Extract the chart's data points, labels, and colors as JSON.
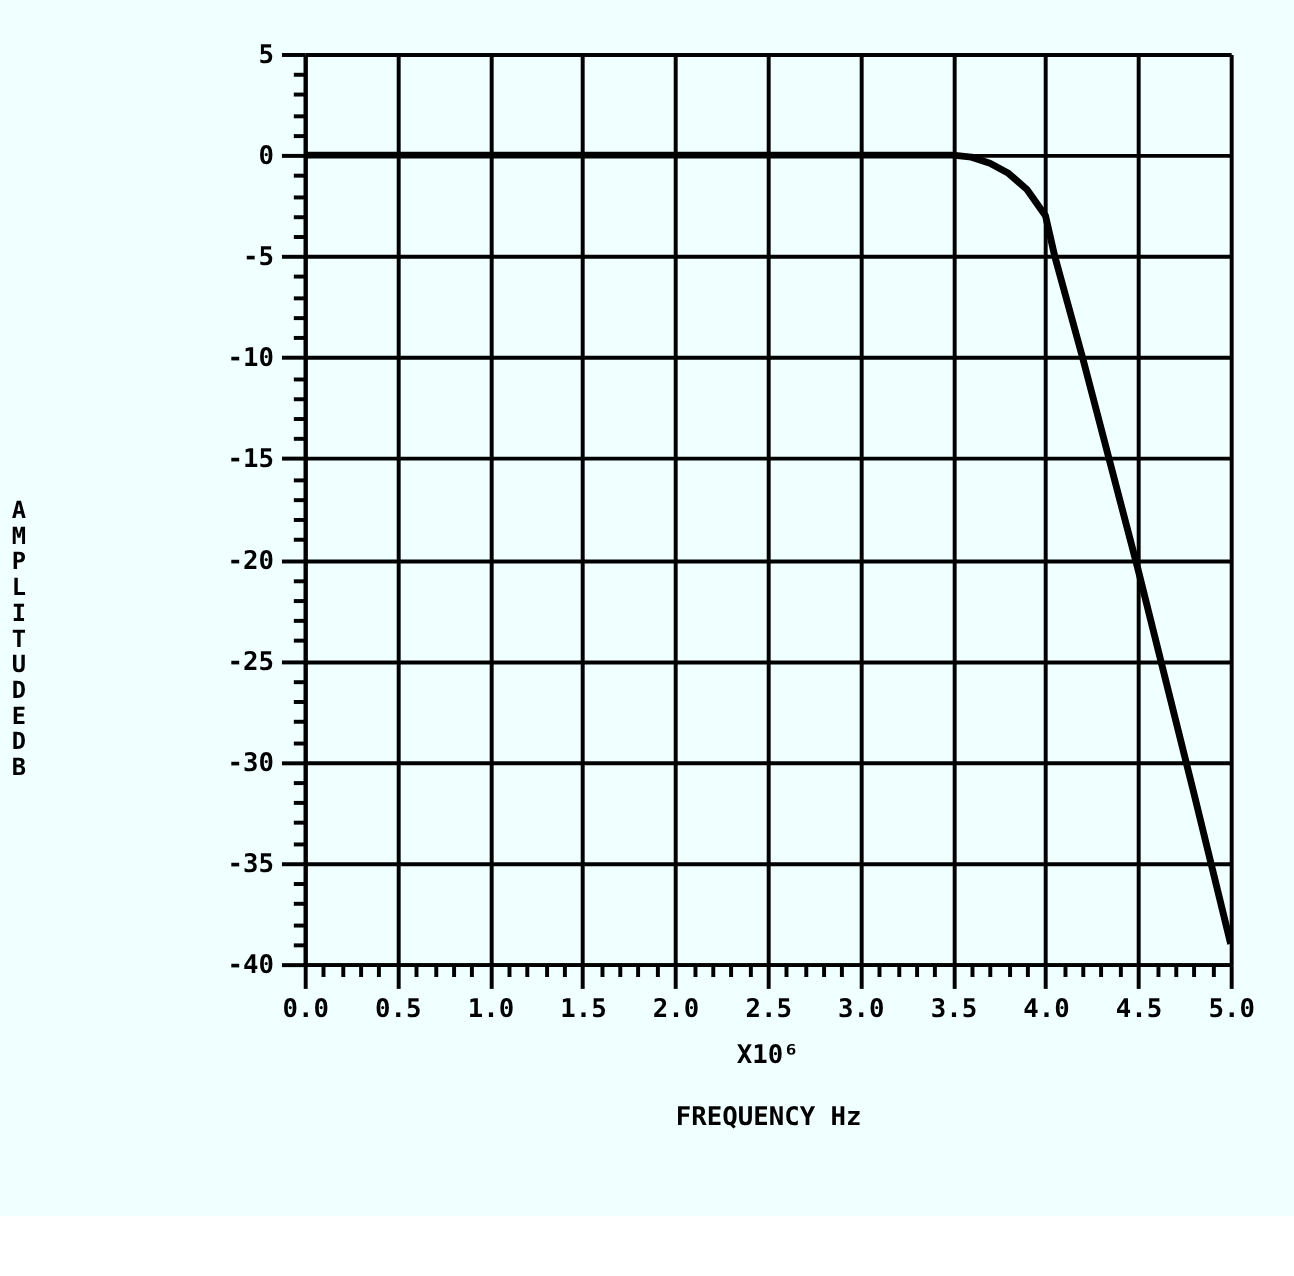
{
  "chart_data": {
    "type": "line",
    "xlabel": "FREQUENCY Hz",
    "ylabel": "AMPLITUDE DB",
    "annotations": [
      "X10⁶"
    ],
    "x": [
      0.0,
      0.5,
      1.0,
      1.5,
      2.0,
      2.5,
      3.0,
      3.5,
      3.6,
      3.7,
      3.8,
      3.9,
      4.0,
      4.05,
      4.2,
      4.5,
      4.8,
      5.0
    ],
    "series": [
      {
        "color": "#000000",
        "values": [
          0,
          0,
          0,
          0,
          0,
          0,
          0,
          0,
          -0.1,
          -0.4,
          -0.9,
          -1.7,
          -3,
          -5,
          -10,
          -20.5,
          -31.5,
          -39
        ]
      }
    ],
    "xlim": [
      0.0,
      5.0
    ],
    "xticks": [
      {
        "value": 0,
        "label": "0.0"
      },
      0.5,
      {
        "value": 1,
        "label": "1.0"
      },
      1.5,
      {
        "value": 2,
        "label": "2.0"
      },
      2.5,
      {
        "value": 3,
        "label": "3.0"
      },
      3.5,
      {
        "value": 4,
        "label": "4.0"
      },
      4.5,
      {
        "value": 5,
        "label": "5.0"
      },
      {
        "value": 0.1,
        "label": null
      },
      {
        "value": 0.2,
        "label": null
      },
      {
        "value": 0.3,
        "label": null
      },
      {
        "value": 0.4,
        "label": null
      },
      {
        "value": 0.6,
        "label": null
      },
      {
        "value": 0.7,
        "label": null
      },
      {
        "value": 0.8,
        "label": null
      },
      {
        "value": 0.9,
        "label": null
      },
      {
        "value": 1.1,
        "label": null
      },
      {
        "value": 1.2,
        "label": null
      },
      {
        "value": 1.3,
        "label": null
      },
      {
        "value": 1.4,
        "label": null
      },
      {
        "value": 1.6,
        "label": null
      },
      {
        "value": 1.7,
        "label": null
      },
      {
        "value": 1.8,
        "label": null
      },
      {
        "value": 1.9,
        "label": null
      },
      {
        "value": 2.1,
        "label": null
      },
      {
        "value": 2.2,
        "label": null
      },
      {
        "value": 2.3,
        "label": null
      },
      {
        "value": 2.4,
        "label": null
      },
      {
        "value": 2.6,
        "label": null
      },
      {
        "value": 2.7,
        "label": null
      },
      {
        "value": 2.8,
        "label": null
      },
      {
        "value": 2.9,
        "label": null
      },
      {
        "value": 3.1,
        "label": null
      },
      {
        "value": 3.2,
        "label": null
      },
      {
        "value": 3.3,
        "label": null
      },
      {
        "value": 3.4,
        "label": null
      },
      {
        "value": 3.6,
        "label": null
      },
      {
        "value": 3.7,
        "label": null
      },
      {
        "value": 3.8,
        "label": null
      },
      {
        "value": 3.9,
        "label": null
      },
      {
        "value": 4.1,
        "label": null
      },
      {
        "value": 4.2,
        "label": null
      },
      {
        "value": 4.3,
        "label": null
      },
      {
        "value": 4.4,
        "label": null
      },
      {
        "value": 4.6,
        "label": null
      },
      {
        "value": 4.7,
        "label": null
      },
      {
        "value": 4.8,
        "label": null
      },
      {
        "value": 4.9,
        "label": null
      }
    ],
    "ylim": [
      -40,
      5
    ],
    "yticks": [
      -40,
      -35,
      -30,
      -25,
      -20,
      -15,
      -10,
      -5,
      0,
      5,
      {
        "value": -39,
        "label": null
      },
      {
        "value": -38,
        "label": null
      },
      {
        "value": -37,
        "label": null
      },
      {
        "value": -36,
        "label": null
      },
      {
        "value": -34,
        "label": null
      },
      {
        "value": -33,
        "label": null
      },
      {
        "value": -32,
        "label": null
      },
      {
        "value": -31,
        "label": null
      },
      {
        "value": -29,
        "label": null
      },
      {
        "value": -28,
        "label": null
      },
      {
        "value": -27,
        "label": null
      },
      {
        "value": -26,
        "label": null
      },
      {
        "value": -24,
        "label": null
      },
      {
        "value": -23,
        "label": null
      },
      {
        "value": -22,
        "label": null
      },
      {
        "value": -21,
        "label": null
      },
      {
        "value": -19,
        "label": null
      },
      {
        "value": -18,
        "label": null
      },
      {
        "value": -17,
        "label": null
      },
      {
        "value": -16,
        "label": null
      },
      {
        "value": -14,
        "label": null
      },
      {
        "value": -13,
        "label": null
      },
      {
        "value": -12,
        "label": null
      },
      {
        "value": -11,
        "label": null
      },
      {
        "value": -9,
        "label": null
      },
      {
        "value": -8,
        "label": null
      },
      {
        "value": -7,
        "label": null
      },
      {
        "value": -6,
        "label": null
      },
      {
        "value": -4,
        "label": null
      },
      {
        "value": -3,
        "label": null
      },
      {
        "value": -2,
        "label": null
      },
      {
        "value": -1,
        "label": null
      },
      {
        "value": 1,
        "label": null
      },
      {
        "value": 2,
        "label": null
      },
      {
        "value": 3,
        "label": null
      },
      {
        "value": 4,
        "label": null
      }
    ],
    "grid": true,
    "legend": false,
    "marker": "none",
    "line_style": "solid"
  }
}
